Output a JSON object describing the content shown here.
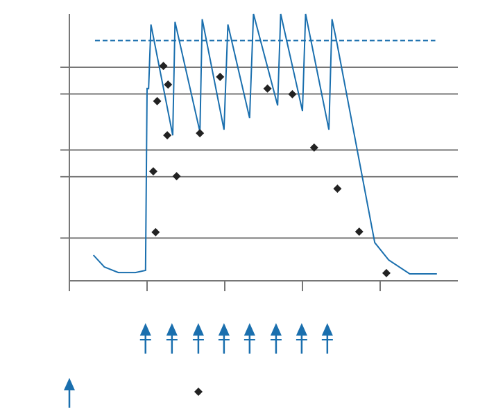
{
  "chart_data": {
    "type": "line",
    "xlim": [
      0,
      5
    ],
    "ylim": [
      0,
      100
    ],
    "xticks": [
      0,
      1,
      2,
      3,
      4
    ],
    "yticks": [
      16,
      39,
      49,
      70,
      80
    ],
    "grid": true,
    "series": [
      {
        "type": "line",
        "color": "#1a6fae",
        "x": [
          0.31,
          0.45,
          0.63,
          0.85,
          0.98,
          1.0,
          1.02,
          1.05,
          1.33,
          1.36,
          1.68,
          1.71,
          1.99,
          2.04,
          2.32,
          2.37,
          2.68,
          2.72,
          3.0,
          3.04,
          3.34,
          3.38,
          3.44,
          3.93,
          4.11,
          4.38,
          4.73
        ],
        "values": [
          9.6,
          5.2,
          3.1,
          3.1,
          3.9,
          72,
          72,
          96,
          54.5,
          97,
          55.8,
          98,
          56.6,
          96,
          61,
          100,
          65.7,
          100,
          63.6,
          100,
          56.6,
          98,
          89.6,
          14.3,
          7.8,
          2.6,
          2.6
        ]
      },
      {
        "type": "scatter",
        "color": "#222222",
        "x": [
          1.11,
          1.08,
          1.13,
          1.21,
          1.27,
          1.26,
          1.38,
          1.68,
          1.94,
          2.55,
          2.87,
          3.15,
          3.45,
          3.73,
          4.08
        ],
        "values": [
          18.2,
          41,
          67.3,
          80.5,
          73.5,
          54.5,
          39.2,
          55.3,
          76.4,
          72,
          69.9,
          49.9,
          34.5,
          18.4,
          2.9
        ]
      }
    ],
    "reference_line": {
      "y": 90,
      "x": [
        0.33,
        4.71
      ],
      "color": "#1a6fae"
    },
    "dose_x": [
      0.98,
      1.32,
      1.66,
      1.99,
      2.32,
      2.66,
      2.99,
      3.32
    ],
    "dose_color": "#1a6fae"
  }
}
